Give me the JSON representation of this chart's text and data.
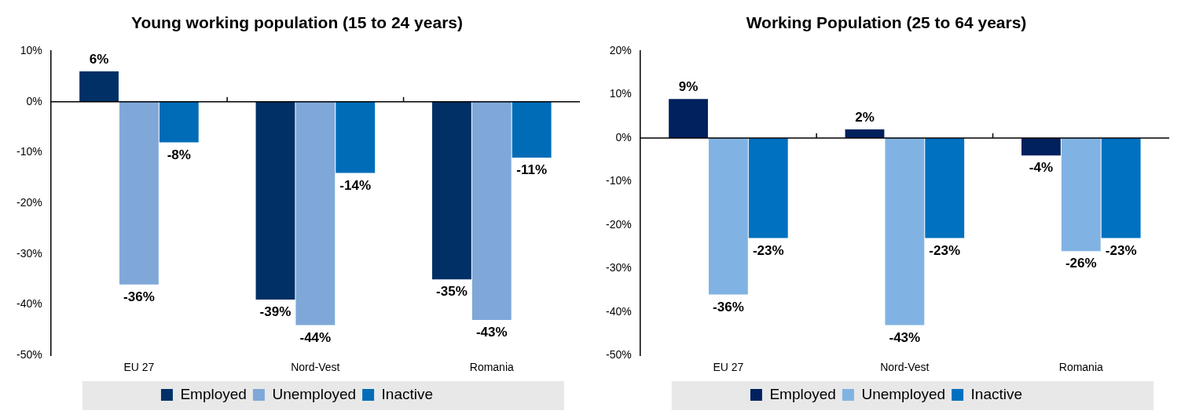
{
  "chart_data": [
    {
      "type": "bar",
      "title": "Young working population (15 to 24 years)",
      "categories": [
        "EU 27",
        "Nord-Vest",
        "Romania"
      ],
      "series": [
        {
          "name": "Employed",
          "color": "#003066",
          "values": [
            6,
            -39,
            -35
          ],
          "value_labels": [
            "6%",
            "-39%",
            "-35%"
          ]
        },
        {
          "name": "Unemployed",
          "color": "#7fa8d9",
          "values": [
            -36,
            -44,
            -43
          ],
          "value_labels": [
            "-36%",
            "-44%",
            "-43%"
          ]
        },
        {
          "name": "Inactive",
          "color": "#006cb8",
          "values": [
            -8,
            -14,
            -11
          ],
          "value_labels": [
            "-8%",
            "-14%",
            "-11%"
          ]
        }
      ],
      "ylim": [
        -50,
        10
      ],
      "yticks": [
        {
          "value": -50,
          "label": "-50%"
        },
        {
          "value": -40,
          "label": "-40%"
        },
        {
          "value": -30,
          "label": "-30%"
        },
        {
          "value": -20,
          "label": "-20%"
        },
        {
          "value": -10,
          "label": "-10%"
        },
        {
          "value": 0,
          "label": "0%"
        },
        {
          "value": 10,
          "label": "10%"
        }
      ],
      "legend": "bottom"
    },
    {
      "type": "bar",
      "title": "Working Population (25 to 64 years)",
      "categories": [
        "EU 27",
        "Nord-Vest",
        "Romania"
      ],
      "series": [
        {
          "name": "Employed",
          "color": "#00215e",
          "values": [
            9,
            2,
            -4
          ],
          "value_labels": [
            "9%",
            "2%",
            "-4%"
          ]
        },
        {
          "name": "Unemployed",
          "color": "#80b3e3",
          "values": [
            -36,
            -43,
            -26
          ],
          "value_labels": [
            "-36%",
            "-43%",
            "-26%"
          ]
        },
        {
          "name": "Inactive",
          "color": "#0070c0",
          "values": [
            -23,
            -23,
            -23
          ],
          "value_labels": [
            "-23%",
            "-23%",
            "-23%"
          ]
        }
      ],
      "ylim": [
        -50,
        20
      ],
      "yticks": [
        {
          "value": -50,
          "label": "-50%"
        },
        {
          "value": -40,
          "label": "-40%"
        },
        {
          "value": -30,
          "label": "-30%"
        },
        {
          "value": -20,
          "label": "-20%"
        },
        {
          "value": -10,
          "label": "-10%"
        },
        {
          "value": 0,
          "label": "0%"
        },
        {
          "value": 10,
          "label": "10%"
        },
        {
          "value": 20,
          "label": "20%"
        }
      ],
      "legend": "bottom"
    }
  ]
}
